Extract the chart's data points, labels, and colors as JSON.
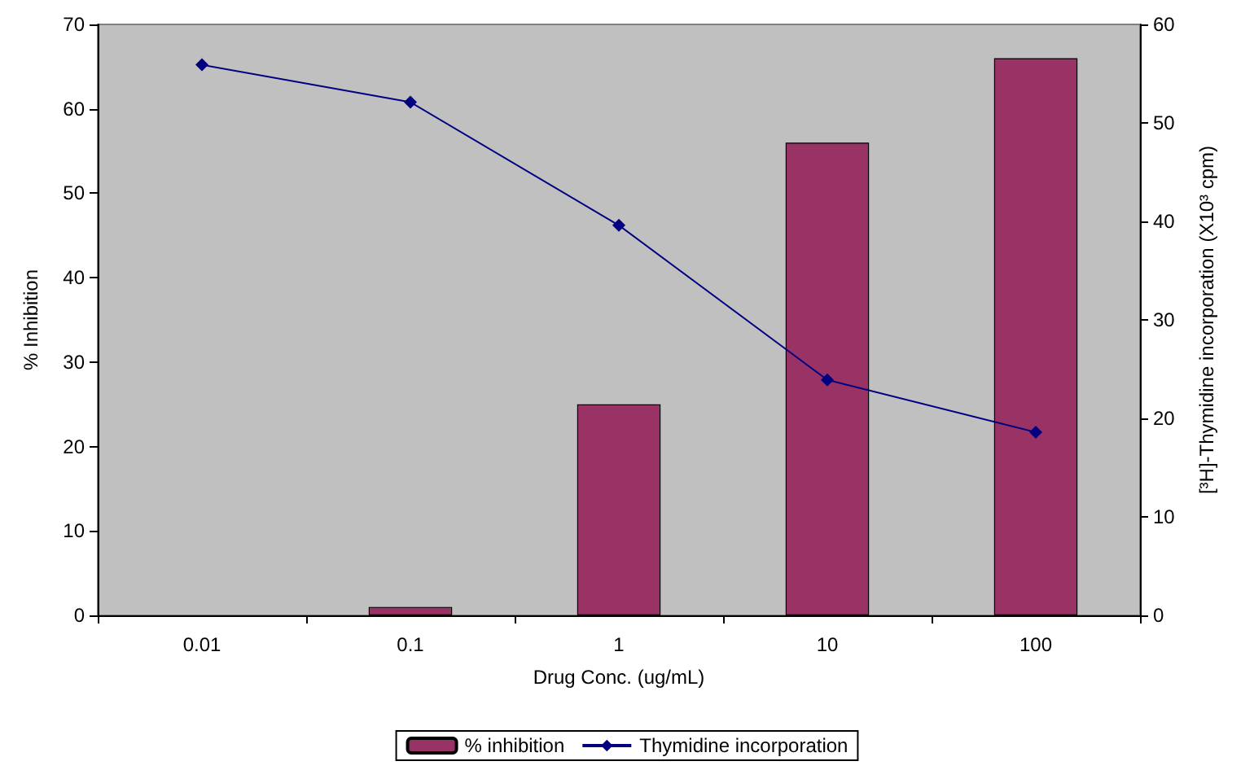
{
  "chart_data": {
    "type": "bar",
    "xlabel": "Drug Conc. (ug/mL)",
    "ylabel": "% Inhibition",
    "y2label": "[³H]-Thymidine incorporation (X10³ cpm)",
    "categories": [
      "0.01",
      "0.1",
      "1",
      "10",
      "100"
    ],
    "series": [
      {
        "name": "% inhibition",
        "color": "#993366",
        "values": [
          0,
          1,
          25,
          56,
          66
        ]
      },
      {
        "name": "Thymidine incorporation",
        "type": "line",
        "axis": "y2",
        "color": "#000080",
        "marker": "diamond",
        "values": [
          55.9,
          52.1,
          39.6,
          23.9,
          18.6
        ]
      }
    ],
    "ylim": [
      0,
      70
    ],
    "yticks": [
      0,
      10,
      20,
      30,
      40,
      50,
      60,
      70
    ],
    "y2lim": [
      0,
      60
    ],
    "y2ticks": [
      0,
      10,
      20,
      30,
      40,
      50,
      60
    ],
    "grid": false,
    "legend": "bottom"
  }
}
